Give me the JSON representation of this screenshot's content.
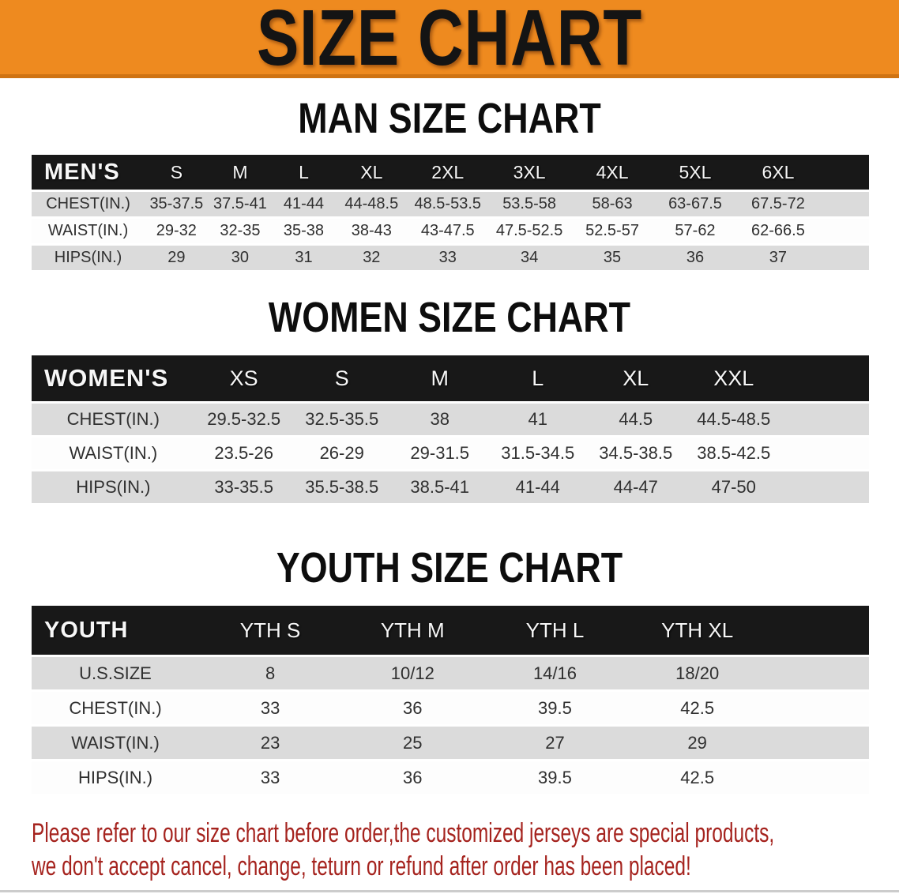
{
  "banner": {
    "title": "SIZE CHART",
    "bg_color": "#ee8a1f",
    "text_color": "#141414"
  },
  "chart_data": [
    {
      "type": "table",
      "title": "MAN SIZE CHART",
      "corner": "MEN'S",
      "columns": [
        "S",
        "M",
        "L",
        "XL",
        "2XL",
        "3XL",
        "4XL",
        "5XL",
        "6XL"
      ],
      "rows": [
        {
          "label": "CHEST(IN.)",
          "values": [
            "35-37.5",
            "37.5-41",
            "41-44",
            "44-48.5",
            "48.5-53.5",
            "53.5-58",
            "58-63",
            "63-67.5",
            "67.5-72"
          ]
        },
        {
          "label": "WAIST(IN.)",
          "values": [
            "29-32",
            "32-35",
            "35-38",
            "38-43",
            "43-47.5",
            "47.5-52.5",
            "52.5-57",
            "57-62",
            "62-66.5"
          ]
        },
        {
          "label": "HIPS(IN.)",
          "values": [
            "29",
            "30",
            "31",
            "32",
            "33",
            "34",
            "35",
            "36",
            "37"
          ]
        }
      ]
    },
    {
      "type": "table",
      "title": "WOMEN SIZE CHART",
      "corner": "WOMEN'S",
      "columns": [
        "XS",
        "S",
        "M",
        "L",
        "XL",
        "XXL"
      ],
      "rows": [
        {
          "label": "CHEST(IN.)",
          "values": [
            "29.5-32.5",
            "32.5-35.5",
            "38",
            "41",
            "44.5",
            "44.5-48.5"
          ]
        },
        {
          "label": "WAIST(IN.)",
          "values": [
            "23.5-26",
            "26-29",
            "29-31.5",
            "31.5-34.5",
            "34.5-38.5",
            "38.5-42.5"
          ]
        },
        {
          "label": "HIPS(IN.)",
          "values": [
            "33-35.5",
            "35.5-38.5",
            "38.5-41",
            "41-44",
            "44-47",
            "47-50"
          ]
        }
      ]
    },
    {
      "type": "table",
      "title": "YOUTH SIZE CHART",
      "corner": "YOUTH",
      "columns": [
        "YTH S",
        "YTH M",
        "YTH L",
        "YTH XL"
      ],
      "rows": [
        {
          "label": "U.S.SIZE",
          "values": [
            "8",
            "10/12",
            "14/16",
            "18/20"
          ]
        },
        {
          "label": "CHEST(IN.)",
          "values": [
            "33",
            "36",
            "39.5",
            "42.5"
          ]
        },
        {
          "label": "WAIST(IN.)",
          "values": [
            "23",
            "25",
            "27",
            "29"
          ]
        },
        {
          "label": "HIPS(IN.)",
          "values": [
            "33",
            "36",
            "39.5",
            "42.5"
          ]
        }
      ]
    }
  ],
  "disclaimer": {
    "line1": "Please refer to our size chart before order,the customized jerseys are special products,",
    "line2": "we don't accept cancel, change, teturn or refund after order has been placed!",
    "color": "#a5231e"
  }
}
